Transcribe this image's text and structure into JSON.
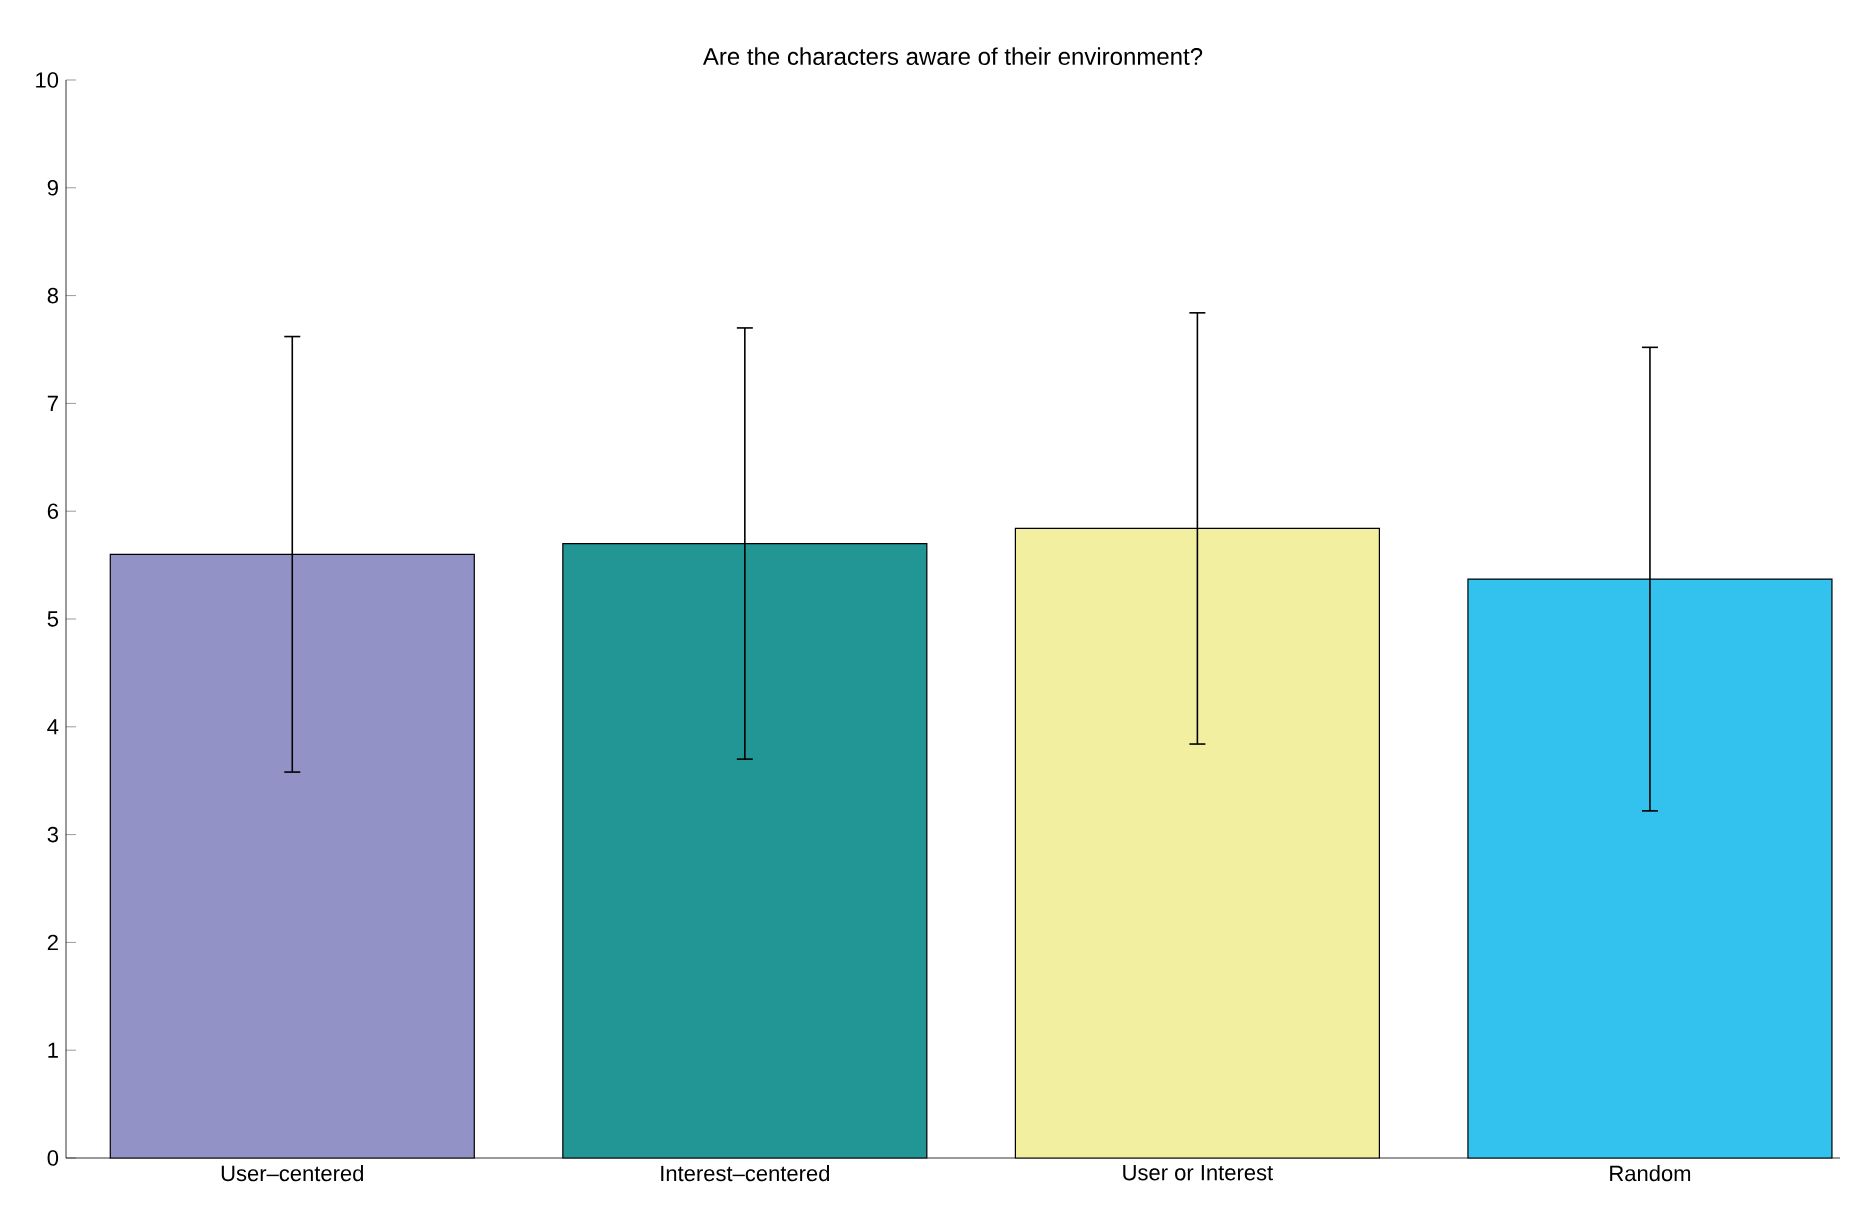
{
  "chart_data": {
    "type": "bar",
    "title": "Are the characters aware of their environment?",
    "categories": [
      "User–centered",
      "Interest–centered",
      "User or Interest",
      "Random"
    ],
    "values": [
      5.6,
      5.7,
      5.84,
      5.37
    ],
    "errors": [
      2.02,
      2.0,
      2.0,
      2.15
    ],
    "colors": [
      "#9292c6",
      "#229595",
      "#f2f0a0",
      "#33c2ee"
    ],
    "ylim": [
      0,
      10
    ],
    "yticks": [
      0,
      1,
      2,
      3,
      4,
      5,
      6,
      7,
      8,
      9,
      10
    ]
  }
}
